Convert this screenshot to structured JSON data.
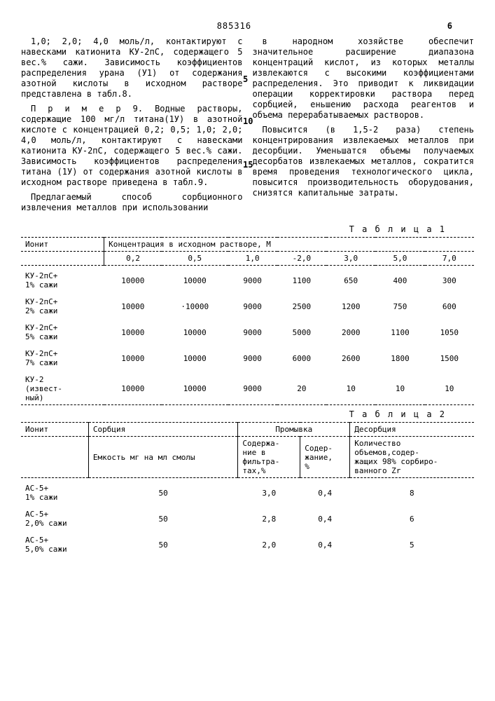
{
  "header": {
    "patent_no": "885316",
    "side_no": "6"
  },
  "col_left": {
    "p1": "1,0; 2,0; 4,0 моль/л, контактируют с навесками катионита КУ-2пС, содержащего 5 вес.% сажи. Зависимость коэффициентов распределения урана (У1) от содержания азотной кислоты в исходном растворе представлена в табл.8.",
    "p2": "П р и м е р  9. Водные растворы, содержащие 100 мг/л титана(1У) в азотной кислоте с концентрацией 0,2; 0,5; 1,0; 2,0; 4,0 моль/л, контактируют с навесками катионита КУ-2пС, содержащего 5 вес.% сажи. Зависимость коэффициентов распределения титана (1У) от содержания азотной кислоты в исходном растворе приведена в табл.9.",
    "p3": "Предлагаемый способ сорбционного извлечения металлов при использовании"
  },
  "col_right": {
    "p1": "в народном хозяйстве обеспечит значительное расширение диапазона концентраций кислот, из которых металлы извлекаются с высокими коэффициентами распределения. Это приводит к ликвидации операции корректировки раствора перед сорбцией,  еньшению расхода реагентов и объема перерабатываемых растворов.",
    "p2": "Повысится (в 1,5-2 раза) степень концентрирования извлекаемых металлов при десорбции. Уменьшатся объемы получаемых десорбатов извлекаемых металлов, сократится время проведения технологического цикла, повысится производительность оборудования, снизятся капитальные затраты."
  },
  "table1": {
    "title": "Т а б л и ц а  1",
    "h_ionit": "Ионит",
    "h_conc": "Концентрация в исходном растворе, М",
    "concs": [
      "0,2",
      "0,5",
      "1,0",
      "-2,0",
      "3,0",
      "5,0",
      "7,0"
    ],
    "rows": [
      {
        "label": "КУ-2пС+\n1% сажи",
        "v": [
          "10000",
          "10000",
          "9000",
          "1100",
          "650",
          "400",
          "300"
        ]
      },
      {
        "label": "КУ-2пС+\n2% сажи",
        "v": [
          "10000",
          "·10000",
          "9000",
          "2500",
          "1200",
          "750",
          "600"
        ]
      },
      {
        "label": "КУ-2пС+\n5% сажи",
        "v": [
          "10000",
          "10000",
          "9000",
          "5000",
          "2000",
          "1100",
          "1050"
        ]
      },
      {
        "label": "КУ-2пС+\n7% сажи",
        "v": [
          "10000",
          "10000",
          "9000",
          "6000",
          "2600",
          "1800",
          "1500"
        ]
      },
      {
        "label": "КУ-2\n(извест-\nный)",
        "v": [
          "10000",
          "10000",
          "9000",
          "20",
          "10",
          "10",
          "10"
        ]
      }
    ]
  },
  "table2": {
    "title": "Т а б л и ц а  2",
    "h_ionit": "Ионит",
    "h_sorb": "Сорбция",
    "h_prom": "Промывка",
    "h_desorb": "Десорбция",
    "sh_emk": "Емкость мг на мл смолы",
    "sh_filt": "Содержа-\nние в\nфильтра-\nтах,%",
    "sh_soder": "Содер-\nжание,\n%",
    "sh_vol": "Количество\nобъемов,содер-\nжащих 98% сорбиро-\nванного Zr",
    "rows": [
      {
        "label": "АС-5+\n1% сажи",
        "v": [
          "50",
          "3,0",
          "0,4",
          "8"
        ]
      },
      {
        "label": "АС-5+\n2,0% сажи",
        "v": [
          "50",
          "2,8",
          "0,4",
          "6"
        ]
      },
      {
        "label": "АС-5+\n5,0% сажи",
        "v": [
          "50",
          "2,0",
          "0,4",
          "5"
        ]
      }
    ]
  },
  "line_numbers": {
    "n5": "5",
    "n10": "10",
    "n15": "15"
  }
}
